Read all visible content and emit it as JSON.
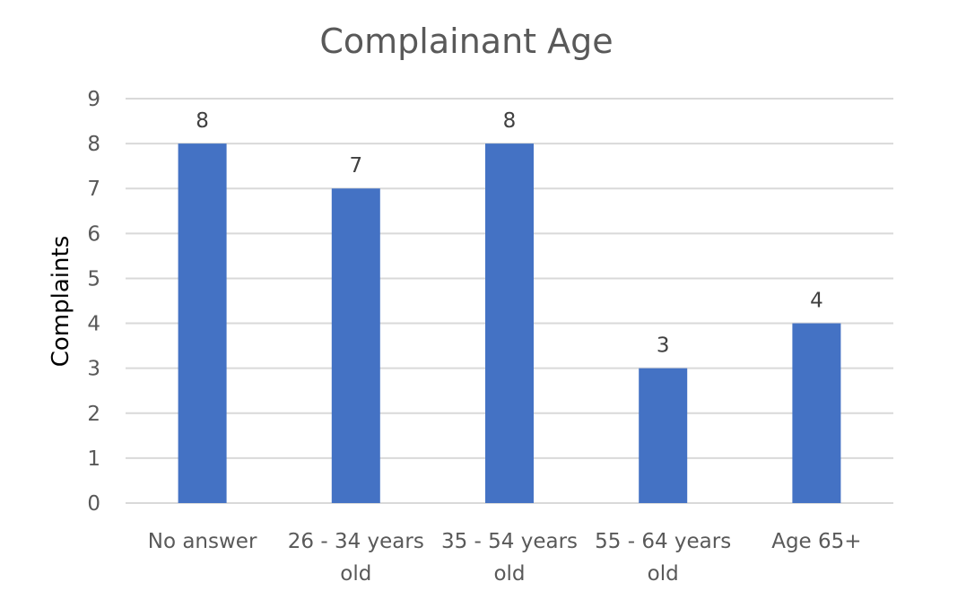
{
  "chart_data": {
    "type": "bar",
    "title": "Complainant Age",
    "xlabel": "",
    "ylabel": "Complaints",
    "categories": [
      [
        "No answer"
      ],
      [
        "26 - 34 years",
        "old"
      ],
      [
        "35 - 54 years",
        "old"
      ],
      [
        "55 - 64 years",
        "old"
      ],
      [
        "Age 65+"
      ]
    ],
    "values": [
      8,
      7,
      8,
      3,
      4
    ],
    "data_labels": [
      "8",
      "7",
      "8",
      "3",
      "4"
    ],
    "ylim": [
      0,
      9
    ],
    "yticks": [
      "0",
      "1",
      "2",
      "3",
      "4",
      "5",
      "6",
      "7",
      "8",
      "9"
    ],
    "grid": true,
    "legend": "none",
    "bar_color": "#4472c4"
  }
}
